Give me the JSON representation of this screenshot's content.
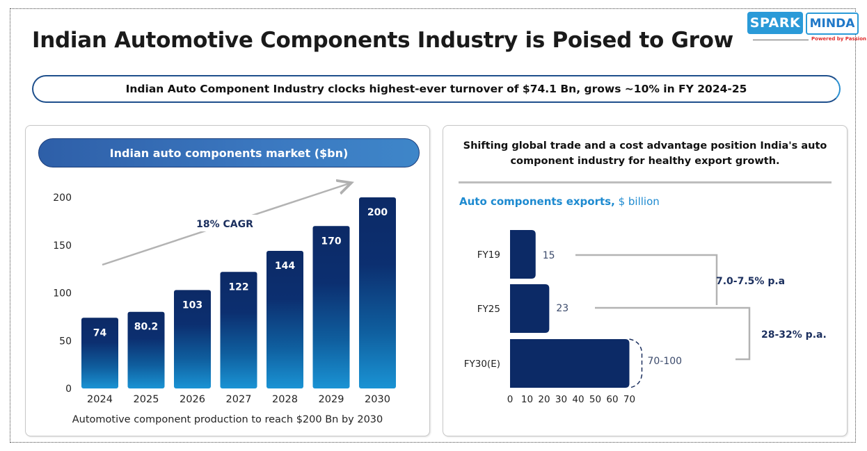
{
  "header": {
    "title": "Indian Automotive Components Industry is Poised to Grow",
    "logo": {
      "spark": "SPARK",
      "minda": "MINDA",
      "tagline": "Powered by Passion"
    }
  },
  "banner": {
    "text": "Indian Auto Component Industry clocks highest-ever turnover of $74.1 Bn, grows ~10% in FY 2024-25"
  },
  "left_panel": {
    "pill_title": "Indian auto components market ($bn)",
    "caption": "Automotive component production to reach $200 Bn by 2030",
    "cagr_label": "18% CAGR"
  },
  "right_panel": {
    "heading_line1": "Shifting global trade and a cost advantage position India's auto",
    "heading_line2": "component industry for healthy export growth.",
    "exports_title_bold": "Auto components exports,",
    "exports_title_unit": " $ billion"
  },
  "colors": {
    "bar_top": "#0c2a66",
    "bar_bottom": "#1a93d4",
    "export_bar": "#0c2a66",
    "accent": "#1d8ad0",
    "connector": "#b3b3b3"
  },
  "chart_data": [
    {
      "type": "bar",
      "title": "Indian auto components market ($bn)",
      "categories": [
        "2024",
        "2025",
        "2026",
        "2027",
        "2028",
        "2029",
        "2030"
      ],
      "values": [
        74,
        80.2,
        103,
        122,
        144,
        170,
        200
      ],
      "data_labels": [
        "74",
        "80.2",
        "103",
        "122",
        "144",
        "170",
        "200"
      ],
      "xlabel": "",
      "ylabel": "",
      "ylim": [
        0,
        200
      ],
      "yticks": [
        0,
        50,
        100,
        150,
        200
      ],
      "grid": false,
      "annotations": [
        {
          "text": "18% CAGR",
          "type": "arrow"
        }
      ],
      "caption": "Automotive component production to reach $200 Bn by 2030"
    },
    {
      "type": "bar",
      "orientation": "horizontal",
      "title": "Auto components exports, $ billion",
      "categories": [
        "FY19",
        "FY25",
        "FY30(E)"
      ],
      "values": [
        15,
        23,
        70
      ],
      "value_ranges": [
        null,
        null,
        [
          70,
          100
        ]
      ],
      "data_labels": [
        "15",
        "23",
        "70-100"
      ],
      "xlim": [
        0,
        70
      ],
      "xticks": [
        0,
        10,
        20,
        30,
        40,
        50,
        60,
        70
      ],
      "grid": false,
      "annotations": [
        {
          "text": "7.0-7.5% p.a",
          "from": "FY19",
          "to": "FY25"
        },
        {
          "text": "28-32% p.a.",
          "from": "FY25",
          "to": "FY30(E)"
        }
      ]
    }
  ]
}
